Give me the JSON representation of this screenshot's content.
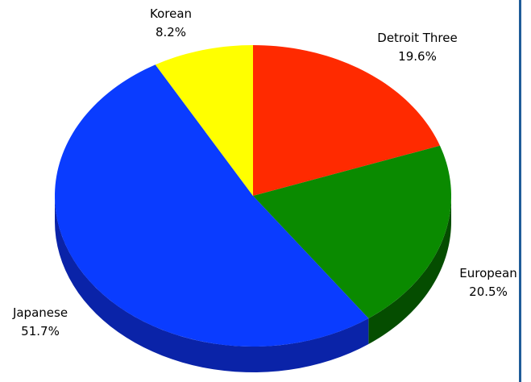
{
  "chart_data": {
    "type": "pie",
    "three_d": true,
    "slices": [
      {
        "label": "Detroit Three",
        "value": 19.6,
        "display": "19.6%",
        "color": "#ff2a00",
        "side_color": "#a31a00"
      },
      {
        "label": "European",
        "value": 20.5,
        "display": "20.5%",
        "color": "#0a8a00",
        "side_color": "#054d00"
      },
      {
        "label": "Japanese",
        "value": 51.7,
        "display": "51.7%",
        "color": "#0a3cff",
        "side_color": "#0a23a8"
      },
      {
        "label": "Korean",
        "value": 8.2,
        "display": "8.2%",
        "color": "#ffff00",
        "side_color": "#a8a800"
      }
    ]
  },
  "frame": {
    "border_color": "#1f5c99"
  }
}
